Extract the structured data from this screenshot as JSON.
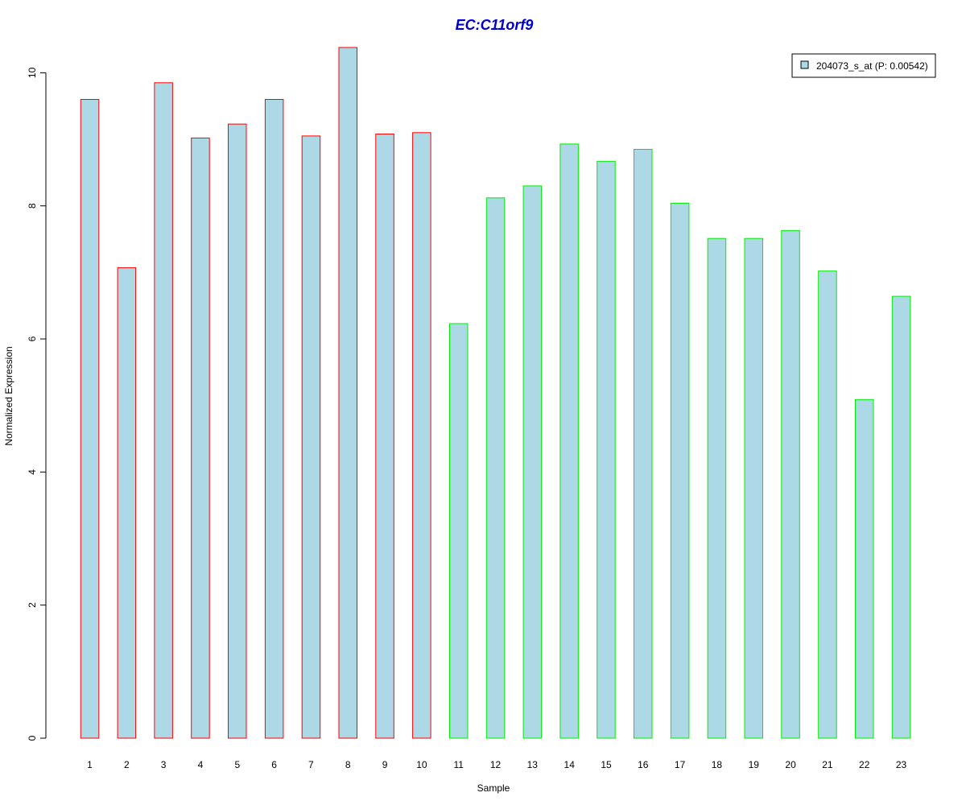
{
  "chart_data": {
    "type": "bar",
    "title": "EC:C11orf9",
    "xlabel": "Sample",
    "ylabel": "Normalized Expression",
    "categories": [
      "1",
      "2",
      "3",
      "4",
      "5",
      "6",
      "7",
      "8",
      "9",
      "10",
      "11",
      "12",
      "13",
      "14",
      "15",
      "16",
      "17",
      "18",
      "19",
      "20",
      "21",
      "22",
      "23"
    ],
    "series": [
      {
        "name": "204073_s_at (P: 0.00542)",
        "values": [
          9.6,
          7.07,
          9.85,
          9.02,
          9.23,
          9.6,
          9.05,
          10.38,
          9.08,
          9.1,
          6.23,
          8.12,
          8.3,
          8.93,
          8.67,
          8.85,
          8.04,
          7.51,
          7.51,
          7.63,
          7.02,
          5.09,
          6.64
        ]
      }
    ],
    "groups": [
      {
        "samples": [
          1,
          2,
          3,
          4,
          5,
          6,
          7,
          8,
          9,
          10
        ],
        "border_color": "#ff0000"
      },
      {
        "samples": [
          11,
          12,
          13,
          14,
          15,
          16,
          17,
          18,
          19,
          20,
          21,
          22,
          23
        ],
        "border_color": "#00ee00"
      }
    ],
    "ylim": [
      0,
      10.38
    ],
    "yticks": [
      0,
      2,
      4,
      6,
      8,
      10
    ],
    "legend_position": "top-right",
    "grid": false,
    "colors": {
      "bar_fill": "#add8e6",
      "title": "#0000cc",
      "axis": "#000000"
    }
  }
}
